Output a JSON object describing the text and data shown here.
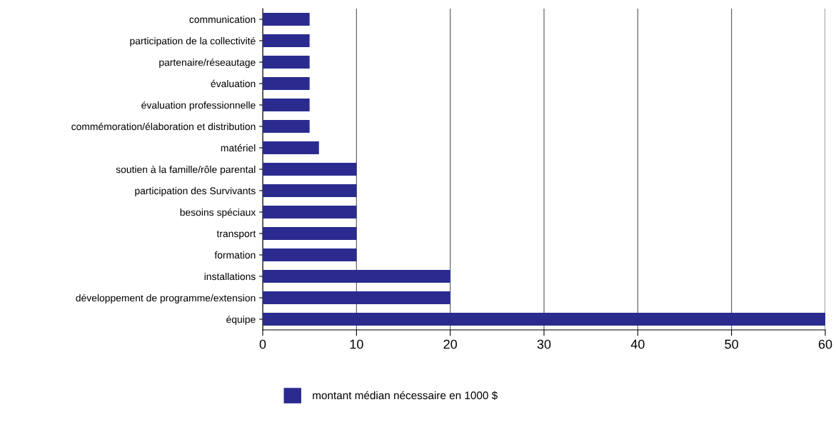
{
  "chart_data": {
    "type": "bar",
    "orientation": "horizontal",
    "categories": [
      "communication",
      "participation de la collectivité",
      "partenaire/réseautage",
      "évaluation",
      "évaluation professionnelle",
      "commémoration/élaboration et distribution",
      "matériel",
      "soutien à la famille/rôle parental",
      "participation des Survivants",
      "besoins spéciaux",
      "transport",
      "formation",
      "installations",
      "développement de programme/extension",
      "équipe"
    ],
    "series": [
      {
        "name": "montant médian nécessaire en 1000 $",
        "color": "#2b2b8f",
        "values": [
          5,
          5,
          5,
          5,
          5,
          5,
          6,
          10,
          10,
          10,
          10,
          10,
          20,
          20,
          60
        ]
      }
    ],
    "xlim": [
      0,
      60
    ],
    "xticks": [
      0,
      10,
      20,
      30,
      40,
      50,
      60
    ],
    "grid": "x",
    "legend": "bottom"
  }
}
